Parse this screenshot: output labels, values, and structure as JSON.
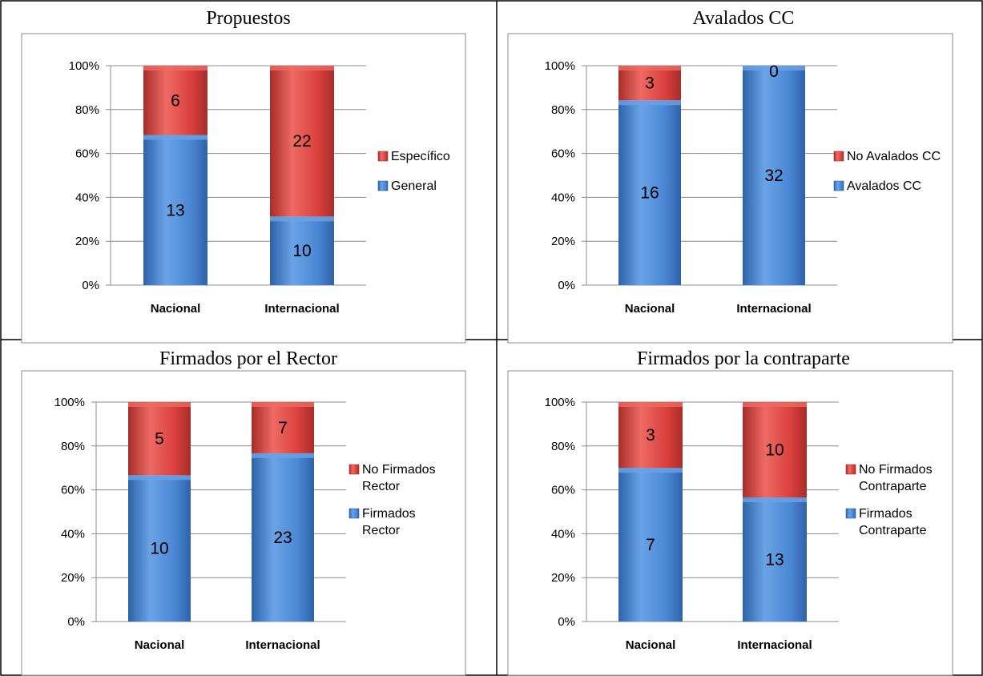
{
  "colors": {
    "blue": "#4a86d4",
    "blue_light": "#6aa3e6",
    "blue_dark": "#2e62a8",
    "red": "#d9403c",
    "red_light": "#ee6a63",
    "red_dark": "#a82d2a",
    "grid": "#8c8c8c"
  },
  "chart_data": [
    {
      "type": "bar",
      "stacked": "percent",
      "title": "Propuestos",
      "categories": [
        "Nacional",
        "Internacional"
      ],
      "series": [
        {
          "name": "General",
          "values": [
            13,
            10
          ],
          "color": "blue"
        },
        {
          "name": "Específico",
          "values": [
            6,
            22
          ],
          "color": "red"
        }
      ],
      "yticks": [
        "0%",
        "20%",
        "40%",
        "60%",
        "80%",
        "100%"
      ],
      "ylim": [
        0,
        100
      ],
      "grid": true,
      "legend": "right",
      "legend_items": [
        {
          "lines": [
            "Específico"
          ],
          "color": "red"
        },
        {
          "lines": [
            "General"
          ],
          "color": "blue"
        }
      ]
    },
    {
      "type": "bar",
      "stacked": "percent",
      "title": "Avalados CC",
      "categories": [
        "Nacional",
        "Internacional"
      ],
      "series": [
        {
          "name": "Avalados CC",
          "values": [
            16,
            32
          ],
          "color": "blue"
        },
        {
          "name": "No Avalados CC",
          "values": [
            3,
            0
          ],
          "color": "red"
        }
      ],
      "yticks": [
        "0%",
        "20%",
        "40%",
        "60%",
        "80%",
        "100%"
      ],
      "ylim": [
        0,
        100
      ],
      "grid": true,
      "legend": "right",
      "legend_items": [
        {
          "lines": [
            "No Avalados CC"
          ],
          "color": "red"
        },
        {
          "lines": [
            "Avalados CC"
          ],
          "color": "blue"
        }
      ]
    },
    {
      "type": "bar",
      "stacked": "percent",
      "title": "Firmados por el Rector",
      "categories": [
        "Nacional",
        "Internacional"
      ],
      "series": [
        {
          "name": "Firmados Rector",
          "values": [
            10,
            23
          ],
          "color": "blue"
        },
        {
          "name": "No Firmados Rector",
          "values": [
            5,
            7
          ],
          "color": "red"
        }
      ],
      "yticks": [
        "0%",
        "20%",
        "40%",
        "60%",
        "80%",
        "100%"
      ],
      "ylim": [
        0,
        100
      ],
      "grid": true,
      "legend": "right",
      "legend_items": [
        {
          "lines": [
            "No Firmados",
            "Rector"
          ],
          "color": "red"
        },
        {
          "lines": [
            "Firmados",
            "Rector"
          ],
          "color": "blue"
        }
      ]
    },
    {
      "type": "bar",
      "stacked": "percent",
      "title": "Firmados por la contraparte",
      "categories": [
        "Nacional",
        "Internacional"
      ],
      "series": [
        {
          "name": "Firmados Contraparte",
          "values": [
            7,
            13
          ],
          "color": "blue"
        },
        {
          "name": "No Firmados Contraparte",
          "values": [
            3,
            10
          ],
          "color": "red"
        }
      ],
      "yticks": [
        "0%",
        "20%",
        "40%",
        "60%",
        "80%",
        "100%"
      ],
      "ylim": [
        0,
        100
      ],
      "grid": true,
      "legend": "right",
      "legend_items": [
        {
          "lines": [
            "No Firmados",
            "Contraparte"
          ],
          "color": "red"
        },
        {
          "lines": [
            "Firmados",
            "Contraparte"
          ],
          "color": "blue"
        }
      ]
    }
  ]
}
